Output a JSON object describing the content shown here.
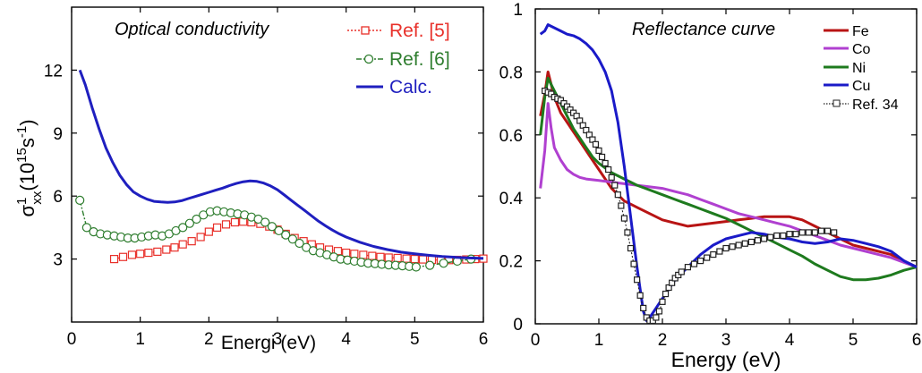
{
  "colors": {
    "calc": "#1f1fbf",
    "ref5": "#e8302a",
    "ref6": "#2e7d2e",
    "fe": "#b81414",
    "co": "#b040d0",
    "ni": "#1e7a1e",
    "cu": "#1a1ac8",
    "ref34": "#222222"
  },
  "chart_data": [
    {
      "type": "line",
      "title": "Optical conductivity",
      "xlabel": "Energi (eV)",
      "ylabel": {
        "main": "σ",
        "sup1": "1",
        "sub": "xx",
        "open": "(10",
        "sup2": "15",
        "unit": "s",
        "sup3": "-1",
        "close": ")"
      },
      "xlim": [
        0,
        6
      ],
      "ylim": [
        0,
        15
      ],
      "xticks": [
        "0",
        "1",
        "2",
        "3",
        "4",
        "5",
        "6"
      ],
      "yticks": [
        "3",
        "6",
        "9",
        "12"
      ],
      "legend_position": "top-right",
      "series": [
        {
          "name": "Ref. [5]",
          "style": "dotted-square",
          "x": [
            0.62,
            0.75,
            0.88,
            1.0,
            1.12,
            1.25,
            1.38,
            1.5,
            1.62,
            1.75,
            1.88,
            2.0,
            2.12,
            2.25,
            2.38,
            2.5,
            2.62,
            2.75,
            2.88,
            3.0,
            3.12,
            3.25,
            3.38,
            3.5,
            3.62,
            3.75,
            3.88,
            4.0,
            4.12,
            4.25,
            4.38,
            4.5,
            4.62,
            4.75,
            4.88,
            5.0,
            5.12,
            5.25,
            5.38,
            5.5,
            5.62,
            5.75,
            5.88,
            6.0
          ],
          "y": [
            3.0,
            3.1,
            3.2,
            3.25,
            3.3,
            3.35,
            3.45,
            3.55,
            3.7,
            3.85,
            4.05,
            4.3,
            4.5,
            4.65,
            4.75,
            4.78,
            4.75,
            4.68,
            4.55,
            4.4,
            4.2,
            4.0,
            3.85,
            3.7,
            3.55,
            3.45,
            3.38,
            3.3,
            3.25,
            3.2,
            3.15,
            3.1,
            3.07,
            3.05,
            3.02,
            3.0,
            2.98,
            2.96,
            2.95,
            2.95,
            2.96,
            2.98,
            3.0,
            3.02
          ]
        },
        {
          "name": "Ref. [6]",
          "style": "dashdot-circle",
          "x": [
            0.12,
            0.22,
            0.32,
            0.42,
            0.52,
            0.62,
            0.72,
            0.82,
            0.92,
            1.02,
            1.12,
            1.22,
            1.32,
            1.42,
            1.52,
            1.62,
            1.72,
            1.82,
            1.92,
            2.02,
            2.12,
            2.22,
            2.32,
            2.42,
            2.52,
            2.62,
            2.72,
            2.82,
            2.92,
            3.02,
            3.12,
            3.22,
            3.32,
            3.42,
            3.52,
            3.62,
            3.72,
            3.82,
            3.92,
            4.02,
            4.12,
            4.22,
            4.32,
            4.42,
            4.52,
            4.62,
            4.72,
            4.82,
            4.92,
            5.02,
            5.22,
            5.42,
            5.62,
            5.82
          ],
          "y": [
            5.8,
            4.5,
            4.3,
            4.2,
            4.15,
            4.1,
            4.05,
            4.0,
            4.0,
            4.05,
            4.1,
            4.15,
            4.1,
            4.2,
            4.35,
            4.5,
            4.7,
            4.9,
            5.1,
            5.25,
            5.3,
            5.25,
            5.2,
            5.15,
            5.1,
            5.0,
            4.9,
            4.75,
            4.55,
            4.35,
            4.15,
            3.95,
            3.75,
            3.55,
            3.4,
            3.3,
            3.2,
            3.1,
            3.0,
            2.95,
            2.9,
            2.85,
            2.8,
            2.78,
            2.75,
            2.72,
            2.7,
            2.68,
            2.65,
            2.62,
            2.7,
            2.8,
            2.9,
            3.0
          ]
        },
        {
          "name": "Calc.",
          "style": "solid",
          "x": [
            0.12,
            0.2,
            0.3,
            0.4,
            0.5,
            0.6,
            0.7,
            0.8,
            0.9,
            1.0,
            1.1,
            1.2,
            1.3,
            1.4,
            1.5,
            1.6,
            1.7,
            1.8,
            1.9,
            2.0,
            2.1,
            2.2,
            2.3,
            2.4,
            2.5,
            2.6,
            2.7,
            2.8,
            2.9,
            3.0,
            3.1,
            3.2,
            3.3,
            3.4,
            3.5,
            3.6,
            3.7,
            3.8,
            3.9,
            4.0,
            4.2,
            4.4,
            4.6,
            4.8,
            5.0,
            5.2,
            5.4,
            5.6,
            5.8,
            6.0
          ],
          "y": [
            12.0,
            11.3,
            10.2,
            9.2,
            8.3,
            7.6,
            7.0,
            6.55,
            6.2,
            6.0,
            5.85,
            5.75,
            5.72,
            5.7,
            5.72,
            5.78,
            5.88,
            5.98,
            6.08,
            6.18,
            6.28,
            6.38,
            6.5,
            6.6,
            6.68,
            6.72,
            6.7,
            6.62,
            6.48,
            6.3,
            6.05,
            5.8,
            5.55,
            5.3,
            5.05,
            4.8,
            4.58,
            4.38,
            4.2,
            4.05,
            3.8,
            3.6,
            3.45,
            3.33,
            3.25,
            3.18,
            3.12,
            3.08,
            3.05,
            3.03
          ]
        }
      ]
    },
    {
      "type": "line",
      "title": "Reflectance curve",
      "xlabel": "Energy (eV)",
      "ylabel": "",
      "xlim": [
        0,
        6
      ],
      "ylim": [
        0,
        1
      ],
      "xticks": [
        "0",
        "1",
        "2",
        "3",
        "4",
        "5",
        "6"
      ],
      "yticks": [
        "0",
        "0.2",
        "0.4",
        "0.6",
        "0.8",
        "1"
      ],
      "legend_position": "top-right",
      "series": [
        {
          "name": "Fe",
          "style": "solid",
          "x": [
            0.08,
            0.15,
            0.2,
            0.3,
            0.4,
            0.5,
            0.6,
            0.7,
            0.8,
            0.9,
            1.0,
            1.1,
            1.2,
            1.3,
            1.4,
            1.5,
            1.6,
            1.7,
            1.8,
            1.9,
            2.0,
            2.2,
            2.4,
            2.6,
            2.8,
            3.0,
            3.2,
            3.4,
            3.6,
            3.8,
            4.0,
            4.2,
            4.4,
            4.6,
            4.8,
            5.0,
            5.2,
            5.4,
            5.6,
            5.8,
            6.0
          ],
          "y": [
            0.66,
            0.73,
            0.8,
            0.72,
            0.67,
            0.64,
            0.61,
            0.58,
            0.55,
            0.52,
            0.49,
            0.46,
            0.43,
            0.41,
            0.39,
            0.38,
            0.37,
            0.36,
            0.35,
            0.34,
            0.33,
            0.32,
            0.31,
            0.315,
            0.32,
            0.325,
            0.33,
            0.335,
            0.34,
            0.34,
            0.34,
            0.33,
            0.31,
            0.29,
            0.27,
            0.25,
            0.24,
            0.23,
            0.22,
            0.2,
            0.18
          ]
        },
        {
          "name": "Co",
          "style": "solid",
          "x": [
            0.08,
            0.15,
            0.2,
            0.25,
            0.3,
            0.4,
            0.5,
            0.6,
            0.7,
            0.8,
            1.0,
            1.2,
            1.4,
            1.6,
            1.8,
            2.0,
            2.2,
            2.4,
            2.6,
            2.8,
            3.0,
            3.2,
            3.4,
            3.6,
            3.8,
            4.0,
            4.2,
            4.4,
            4.6,
            4.8,
            5.0,
            5.2,
            5.4,
            5.6,
            5.8,
            6.0
          ],
          "y": [
            0.43,
            0.55,
            0.7,
            0.62,
            0.56,
            0.52,
            0.49,
            0.475,
            0.465,
            0.46,
            0.455,
            0.45,
            0.445,
            0.44,
            0.435,
            0.43,
            0.42,
            0.41,
            0.395,
            0.38,
            0.365,
            0.35,
            0.34,
            0.33,
            0.32,
            0.31,
            0.295,
            0.28,
            0.265,
            0.25,
            0.24,
            0.23,
            0.22,
            0.21,
            0.195,
            0.18
          ]
        },
        {
          "name": "Ni",
          "style": "solid",
          "x": [
            0.08,
            0.15,
            0.2,
            0.3,
            0.4,
            0.5,
            0.6,
            0.7,
            0.8,
            0.9,
            1.0,
            1.2,
            1.4,
            1.6,
            1.8,
            2.0,
            2.2,
            2.4,
            2.6,
            2.8,
            3.0,
            3.2,
            3.4,
            3.6,
            3.8,
            4.0,
            4.2,
            4.4,
            4.6,
            4.8,
            5.0,
            5.2,
            5.4,
            5.6,
            5.8,
            6.0
          ],
          "y": [
            0.6,
            0.72,
            0.78,
            0.74,
            0.7,
            0.66,
            0.62,
            0.59,
            0.56,
            0.53,
            0.51,
            0.48,
            0.46,
            0.44,
            0.425,
            0.41,
            0.395,
            0.38,
            0.365,
            0.35,
            0.335,
            0.315,
            0.295,
            0.275,
            0.255,
            0.235,
            0.215,
            0.19,
            0.17,
            0.15,
            0.14,
            0.14,
            0.145,
            0.155,
            0.17,
            0.18
          ]
        },
        {
          "name": "Cu",
          "style": "solid",
          "x": [
            0.08,
            0.15,
            0.2,
            0.3,
            0.4,
            0.5,
            0.6,
            0.7,
            0.8,
            0.9,
            1.0,
            1.1,
            1.2,
            1.3,
            1.4,
            1.5,
            1.6,
            1.7,
            1.75,
            1.8,
            1.9,
            2.0,
            2.1,
            2.2,
            2.3,
            2.4,
            2.5,
            2.6,
            2.8,
            3.0,
            3.2,
            3.4,
            3.6,
            3.8,
            4.0,
            4.2,
            4.4,
            4.6,
            4.8,
            5.0,
            5.2,
            5.4,
            5.6,
            5.8,
            6.0
          ],
          "y": [
            0.92,
            0.93,
            0.95,
            0.94,
            0.93,
            0.92,
            0.915,
            0.905,
            0.89,
            0.87,
            0.84,
            0.8,
            0.74,
            0.64,
            0.5,
            0.34,
            0.18,
            0.04,
            0.01,
            0.02,
            0.05,
            0.08,
            0.11,
            0.14,
            0.16,
            0.18,
            0.2,
            0.22,
            0.25,
            0.27,
            0.28,
            0.29,
            0.285,
            0.275,
            0.27,
            0.26,
            0.255,
            0.26,
            0.27,
            0.265,
            0.255,
            0.245,
            0.23,
            0.2,
            0.18
          ]
        },
        {
          "name": "Ref. 34",
          "style": "dotted-square",
          "x": [
            0.15,
            0.2,
            0.25,
            0.3,
            0.35,
            0.4,
            0.45,
            0.5,
            0.55,
            0.6,
            0.65,
            0.7,
            0.75,
            0.8,
            0.85,
            0.9,
            0.95,
            1.0,
            1.05,
            1.1,
            1.15,
            1.2,
            1.25,
            1.3,
            1.35,
            1.4,
            1.45,
            1.5,
            1.55,
            1.6,
            1.65,
            1.7,
            1.75,
            1.8,
            1.85,
            1.9,
            1.95,
            2.0,
            2.05,
            2.1,
            2.15,
            2.2,
            2.25,
            2.3,
            2.4,
            2.5,
            2.6,
            2.7,
            2.8,
            2.9,
            3.0,
            3.1,
            3.2,
            3.3,
            3.4,
            3.5,
            3.6,
            3.7,
            3.8,
            3.9,
            4.0,
            4.1,
            4.2,
            4.3,
            4.4,
            4.5,
            4.6,
            4.7
          ],
          "y": [
            0.74,
            0.735,
            0.73,
            0.72,
            0.715,
            0.71,
            0.7,
            0.69,
            0.68,
            0.67,
            0.66,
            0.645,
            0.63,
            0.615,
            0.6,
            0.585,
            0.57,
            0.55,
            0.53,
            0.51,
            0.49,
            0.465,
            0.44,
            0.41,
            0.375,
            0.335,
            0.29,
            0.24,
            0.19,
            0.14,
            0.09,
            0.05,
            0.02,
            0.01,
            0.01,
            0.02,
            0.04,
            0.07,
            0.095,
            0.115,
            0.13,
            0.145,
            0.155,
            0.165,
            0.18,
            0.19,
            0.2,
            0.21,
            0.22,
            0.23,
            0.24,
            0.245,
            0.25,
            0.255,
            0.26,
            0.265,
            0.27,
            0.275,
            0.28,
            0.28,
            0.285,
            0.285,
            0.29,
            0.29,
            0.29,
            0.295,
            0.295,
            0.29
          ]
        }
      ]
    }
  ]
}
